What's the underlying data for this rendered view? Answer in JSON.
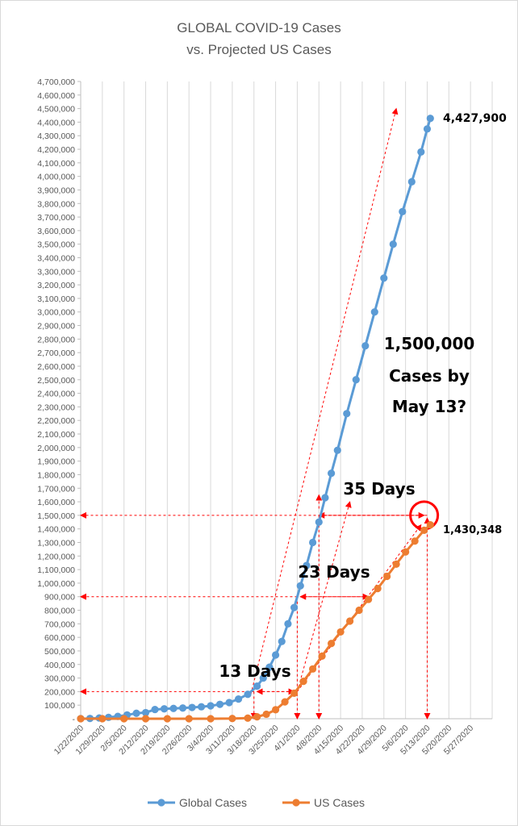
{
  "chart_data": {
    "type": "line",
    "title_line1": "GLOBAL COVID-19 Cases",
    "title_line2": "vs. Projected US Cases",
    "xlabel": "",
    "ylabel": "",
    "grid": "vertical",
    "legend_position": "bottom",
    "ylim": [
      0,
      4700000
    ],
    "y_ticks": [
      "-",
      "100,000",
      "200,000",
      "300,000",
      "400,000",
      "500,000",
      "600,000",
      "700,000",
      "800,000",
      "900,000",
      "1,000,000",
      "1,100,000",
      "1,200,000",
      "1,300,000",
      "1,400,000",
      "1,500,000",
      "1,600,000",
      "1,700,000",
      "1,800,000",
      "1,900,000",
      "2,000,000",
      "2,100,000",
      "2,200,000",
      "2,300,000",
      "2,400,000",
      "2,500,000",
      "2,600,000",
      "2,700,000",
      "2,800,000",
      "2,900,000",
      "3,000,000",
      "3,100,000",
      "3,200,000",
      "3,300,000",
      "3,400,000",
      "3,500,000",
      "3,600,000",
      "3,700,000",
      "3,800,000",
      "3,900,000",
      "4,000,000",
      "4,100,000",
      "4,200,000",
      "4,300,000",
      "4,400,000",
      "4,500,000",
      "4,600,000",
      "4,700,000"
    ],
    "x_start": "1/22/2020",
    "x_end": "6/3/2020",
    "x_ticks": [
      "1/22/2020",
      "1/29/2020",
      "2/5/2020",
      "2/12/2020",
      "2/19/2020",
      "2/26/2020",
      "3/4/2020",
      "3/11/2020",
      "3/18/2020",
      "3/25/2020",
      "4/1/2020",
      "4/8/2020",
      "4/15/2020",
      "4/22/2020",
      "4/29/2020",
      "5/6/2020",
      "5/13/2020",
      "5/20/2020",
      "5/27/2020"
    ],
    "series": [
      {
        "name": "Global Cases",
        "color": "#5b9bd5",
        "x": [
          "1/22/2020",
          "1/25/2020",
          "1/28/2020",
          "1/31/2020",
          "2/3/2020",
          "2/6/2020",
          "2/9/2020",
          "2/12/2020",
          "2/15/2020",
          "2/18/2020",
          "2/21/2020",
          "2/24/2020",
          "2/27/2020",
          "3/1/2020",
          "3/4/2020",
          "3/7/2020",
          "3/10/2020",
          "3/13/2020",
          "3/16/2020",
          "3/19/2020",
          "3/21/2020",
          "3/23/2020",
          "3/25/2020",
          "3/27/2020",
          "3/29/2020",
          "3/31/2020",
          "4/2/2020",
          "4/4/2020",
          "4/6/2020",
          "4/8/2020",
          "4/10/2020",
          "4/12/2020",
          "4/14/2020",
          "4/17/2020",
          "4/20/2020",
          "4/23/2020",
          "4/26/2020",
          "4/29/2020",
          "5/2/2020",
          "5/5/2020",
          "5/8/2020",
          "5/11/2020",
          "5/13/2020",
          "5/14/2020"
        ],
        "values": [
          580,
          2000,
          5500,
          10000,
          17000,
          28000,
          40000,
          45000,
          68000,
          73000,
          76000,
          79000,
          83000,
          88000,
          95000,
          106000,
          119000,
          145000,
          180000,
          240000,
          300000,
          380000,
          470000,
          570000,
          700000,
          820000,
          980000,
          1130000,
          1300000,
          1450000,
          1630000,
          1810000,
          1980000,
          2250000,
          2500000,
          2750000,
          3000000,
          3250000,
          3500000,
          3740000,
          3960000,
          4180000,
          4350000,
          4427900
        ]
      },
      {
        "name": "US Cases",
        "color": "#ed7d31",
        "x": [
          "1/22/2020",
          "1/29/2020",
          "2/5/2020",
          "2/12/2020",
          "2/19/2020",
          "2/26/2020",
          "3/4/2020",
          "3/11/2020",
          "3/16/2020",
          "3/19/2020",
          "3/22/2020",
          "3/25/2020",
          "3/28/2020",
          "3/31/2020",
          "4/3/2020",
          "4/6/2020",
          "4/9/2020",
          "4/12/2020",
          "4/15/2020",
          "4/18/2020",
          "4/21/2020",
          "4/24/2020",
          "4/27/2020",
          "4/30/2020",
          "5/3/2020",
          "5/6/2020",
          "5/9/2020",
          "5/12/2020",
          "5/14/2020"
        ],
        "values": [
          1,
          5,
          12,
          15,
          15,
          60,
          150,
          1300,
          4600,
          14000,
          33000,
          66000,
          124000,
          188000,
          276000,
          367000,
          462000,
          555000,
          640000,
          720000,
          800000,
          880000,
          960000,
          1050000,
          1140000,
          1230000,
          1310000,
          1390000,
          1430348
        ]
      }
    ]
  },
  "annotations": {
    "global_end_value": "4,427,900",
    "us_end_value": "1,430,348",
    "projection_line1": "1,500,000",
    "projection_line2": "Cases by",
    "projection_line3": "May 13?",
    "days_35": "35 Days",
    "days_23": "23 Days",
    "days_13": "13 Days"
  },
  "colors": {
    "global": "#5b9bd5",
    "us": "#ed7d31",
    "annotation_arrows": "#ff0000",
    "grid": "#d9d9d9",
    "text": "#595959"
  }
}
